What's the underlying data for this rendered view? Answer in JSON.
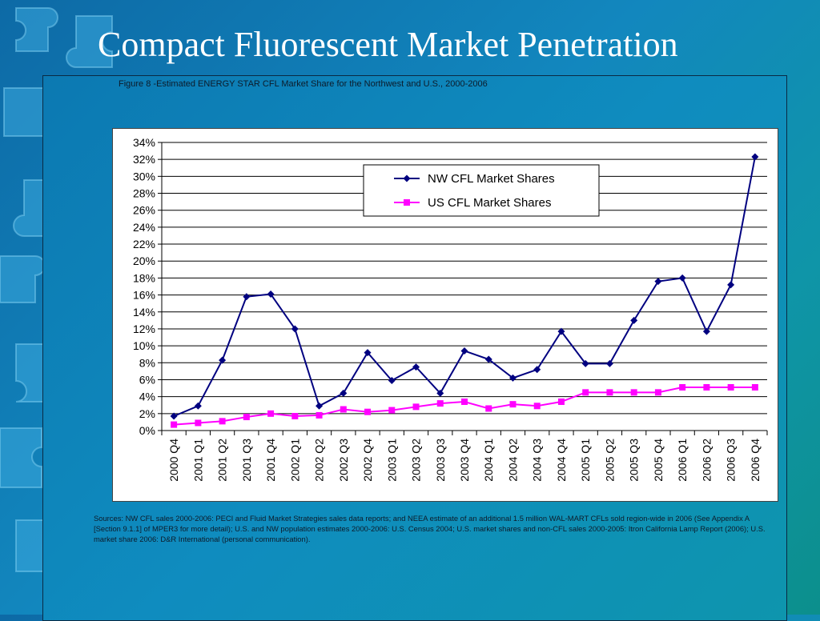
{
  "slide": {
    "title": "Compact Fluorescent Market Penetration",
    "figure_caption": "Figure 8 -Estimated ENERGY STAR CFL Market Share for the Northwest and U.S., 2000-2006",
    "sources": "Sources: NW CFL sales 2000-2006: PECI and Fluid Market Strategies sales data reports; and NEEA estimate of an additional 1.5 million WAL-MART CFLs sold region-wide in 2006 (See Appendix A [Section 9.1.1] of MPER3 for more detail); U.S. and NW population estimates 2000-2006: U.S. Census 2004; U.S. market shares and non-CFL sales 2000-2005: Itron California Lamp Report (2006); U.S. market share 2006: D&R International (personal communication)."
  },
  "colors": {
    "nw_series": "#000080",
    "us_series": "#ff00ff",
    "gridline": "#000000"
  },
  "chart_data": {
    "type": "line",
    "title": "",
    "xlabel": "",
    "ylabel": "",
    "categories": [
      "2000 Q4",
      "2001 Q1",
      "2001 Q2",
      "2001 Q3",
      "2001 Q4",
      "2002 Q1",
      "2002 Q2",
      "2002 Q3",
      "2002 Q4",
      "2003 Q1",
      "2003 Q2",
      "2003 Q3",
      "2003 Q4",
      "2004 Q1",
      "2004 Q2",
      "2004 Q3",
      "2004 Q4",
      "2005 Q1",
      "2005 Q2",
      "2005 Q3",
      "2005 Q4",
      "2006 Q1",
      "2006 Q2",
      "2006 Q3",
      "2006 Q4"
    ],
    "ylim": [
      0,
      0.34
    ],
    "ytick_step": 0.02,
    "y_tick_labels": [
      "0%",
      "2%",
      "4%",
      "6%",
      "8%",
      "10%",
      "12%",
      "14%",
      "16%",
      "18%",
      "20%",
      "22%",
      "24%",
      "26%",
      "28%",
      "30%",
      "32%",
      "34%"
    ],
    "grid": true,
    "legend_position": "top-center",
    "series": [
      {
        "name": "NW CFL Market Shares",
        "marker": "diamond",
        "values": [
          0.017,
          0.029,
          0.083,
          0.158,
          0.161,
          0.12,
          0.029,
          0.044,
          0.092,
          0.059,
          0.075,
          0.044,
          0.094,
          0.084,
          0.062,
          0.072,
          0.117,
          0.079,
          0.079,
          0.13,
          0.176,
          0.18,
          0.117,
          0.172,
          0.323
        ]
      },
      {
        "name": "US CFL Market Shares",
        "marker": "square",
        "values": [
          0.007,
          0.009,
          0.011,
          0.016,
          0.02,
          0.017,
          0.018,
          0.025,
          0.022,
          0.024,
          0.028,
          0.032,
          0.034,
          0.026,
          0.031,
          0.029,
          0.034,
          0.045,
          0.045,
          0.045,
          0.045,
          0.051,
          0.051,
          0.051,
          0.051
        ]
      }
    ]
  }
}
